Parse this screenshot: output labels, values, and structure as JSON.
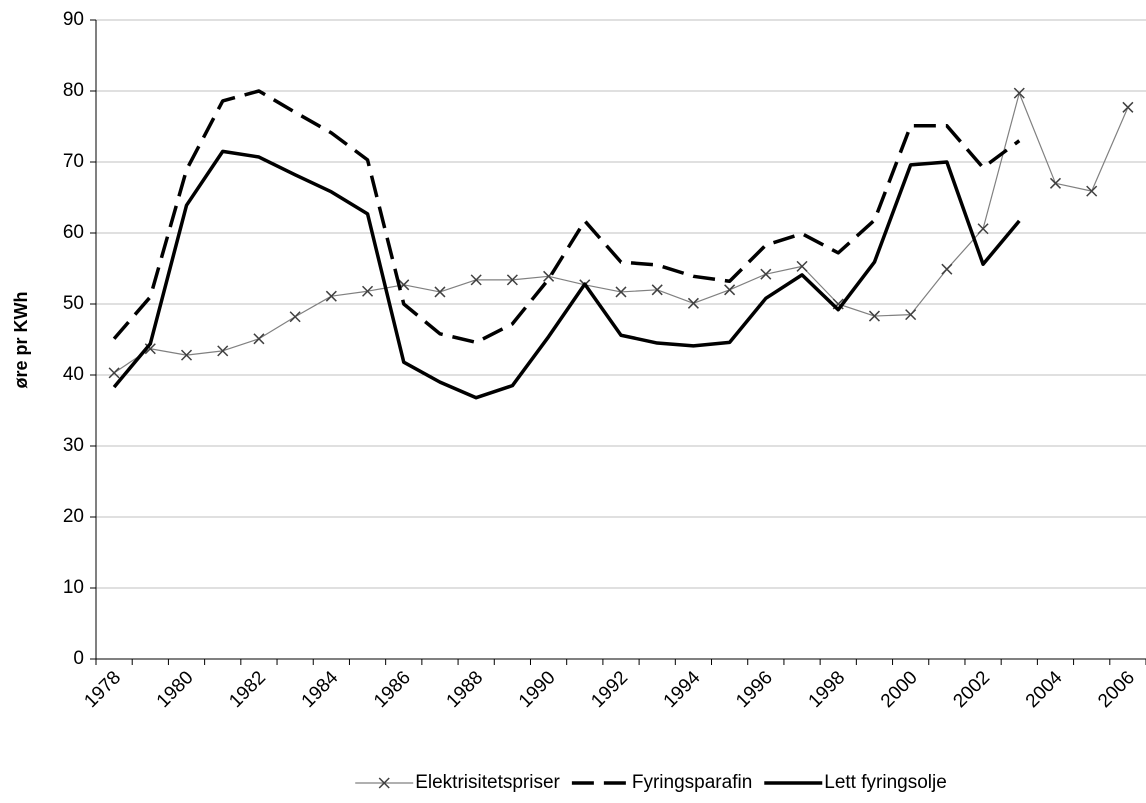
{
  "chart_data": {
    "type": "line",
    "y_label": "øre pr KWh",
    "categories": [
      "1978",
      null,
      "1980",
      null,
      "1982",
      null,
      "1984",
      null,
      "1986",
      null,
      "1988",
      null,
      "1990",
      null,
      "1992",
      null,
      "1994",
      null,
      "1996",
      null,
      "1998",
      null,
      "2000",
      null,
      "2002",
      null,
      "2004",
      null,
      "2006"
    ],
    "ylim": [
      0,
      90
    ],
    "yticks": [
      0,
      10,
      20,
      30,
      40,
      50,
      60,
      70,
      80,
      90
    ],
    "grid": true,
    "legend": "bottom",
    "series": [
      {
        "name": "Elektrisitetspriser",
        "color": "#808080",
        "line_style": "thin",
        "marker": "x",
        "values": [
          40.3,
          43.7,
          42.8,
          43.4,
          45.1,
          48.2,
          51.1,
          51.8,
          52.7,
          51.7,
          53.4,
          53.4,
          53.9,
          52.7,
          51.7,
          52.0,
          50.1,
          52.0,
          54.2,
          55.3,
          50.0,
          48.3,
          48.5,
          54.9,
          60.6,
          79.7,
          67.0,
          65.9,
          77.7
        ]
      },
      {
        "name": "Fyringsparafin",
        "color": "#000000",
        "line_style": "dashed",
        "values": [
          45.1,
          51.0,
          68.9,
          78.6,
          80.0,
          77.0,
          74.1,
          70.3,
          50.0,
          45.8,
          44.6,
          47.2,
          53.5,
          61.7,
          55.9,
          55.5,
          53.9,
          53.2,
          58.3,
          59.9,
          57.2,
          61.8,
          75.1,
          75.1,
          69.2,
          73.0,
          null,
          null,
          null
        ]
      },
      {
        "name": "Lett fyringsolje",
        "color": "#000000",
        "line_style": "solid",
        "values": [
          38.3,
          44.4,
          63.9,
          71.5,
          70.7,
          68.2,
          65.8,
          62.7,
          41.8,
          39.0,
          36.8,
          38.5,
          45.4,
          52.8,
          45.6,
          44.5,
          44.1,
          44.6,
          50.8,
          54.1,
          49.2,
          55.9,
          69.6,
          70.0,
          55.6,
          61.7,
          null,
          null,
          null
        ]
      }
    ]
  }
}
